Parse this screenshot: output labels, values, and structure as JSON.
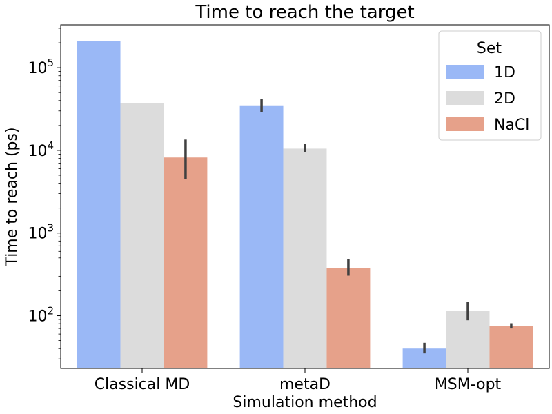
{
  "chart_data": {
    "type": "bar",
    "title": "Time to reach the target",
    "xlabel": "Simulation method",
    "ylabel": "Time to reach (ps)",
    "yscale": "log",
    "ylim": [
      23,
      330000
    ],
    "categories": [
      "Classical MD",
      "metaD",
      "MSM-opt"
    ],
    "series": [
      {
        "name": "1D",
        "color": "#9ab8f6",
        "values": [
          210000,
          35000,
          40
        ],
        "err_low": [
          null,
          29000,
          35
        ],
        "err_high": [
          null,
          41500,
          47
        ]
      },
      {
        "name": "2D",
        "color": "#dcdcdc",
        "values": [
          37000,
          10500,
          115
        ],
        "err_low": [
          null,
          9600,
          88
        ],
        "err_high": [
          null,
          12000,
          148
        ]
      },
      {
        "name": "NaCl",
        "color": "#e6a18a",
        "values": [
          8200,
          380,
          75
        ],
        "err_low": [
          4500,
          305,
          70
        ],
        "err_high": [
          13500,
          480,
          81
        ]
      }
    ],
    "y_ticks": [
      {
        "value": 100,
        "label_base": "10",
        "label_exp": "2"
      },
      {
        "value": 1000,
        "label_base": "10",
        "label_exp": "3"
      },
      {
        "value": 10000,
        "label_base": "10",
        "label_exp": "4"
      },
      {
        "value": 100000,
        "label_base": "10",
        "label_exp": "5"
      }
    ],
    "legend": {
      "title": "Set",
      "position": "top-right"
    },
    "grid": false
  }
}
